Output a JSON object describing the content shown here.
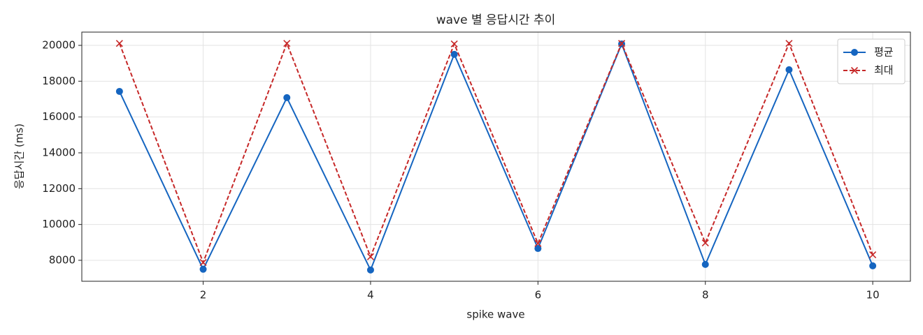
{
  "chart_data": {
    "type": "line",
    "title": "wave 별 응답시간 추이",
    "x_label": "spike wave",
    "y_label": "응답시간 (ms)",
    "x": [
      1,
      2,
      3,
      4,
      5,
      6,
      7,
      8,
      9,
      10
    ],
    "series": [
      {
        "name": "평균",
        "color": "#1565c0",
        "marker": "o",
        "linestyle": "solid",
        "values": [
          17430,
          7500,
          17080,
          7460,
          19500,
          8660,
          20080,
          7770,
          18640,
          7690
        ]
      },
      {
        "name": "최대",
        "color": "#c62828",
        "marker": "x",
        "linestyle": "dashed",
        "values": [
          20110,
          7880,
          20110,
          8200,
          20080,
          8940,
          20110,
          8970,
          20110,
          8310
        ]
      }
    ],
    "xlim": [
      0.55,
      10.45
    ],
    "ylim": [
      6830,
      20740
    ],
    "xticks": [
      2,
      4,
      6,
      8,
      10
    ],
    "yticks": [
      8000,
      10000,
      12000,
      14000,
      16000,
      18000,
      20000
    ],
    "grid": true,
    "legend": "upper right"
  }
}
